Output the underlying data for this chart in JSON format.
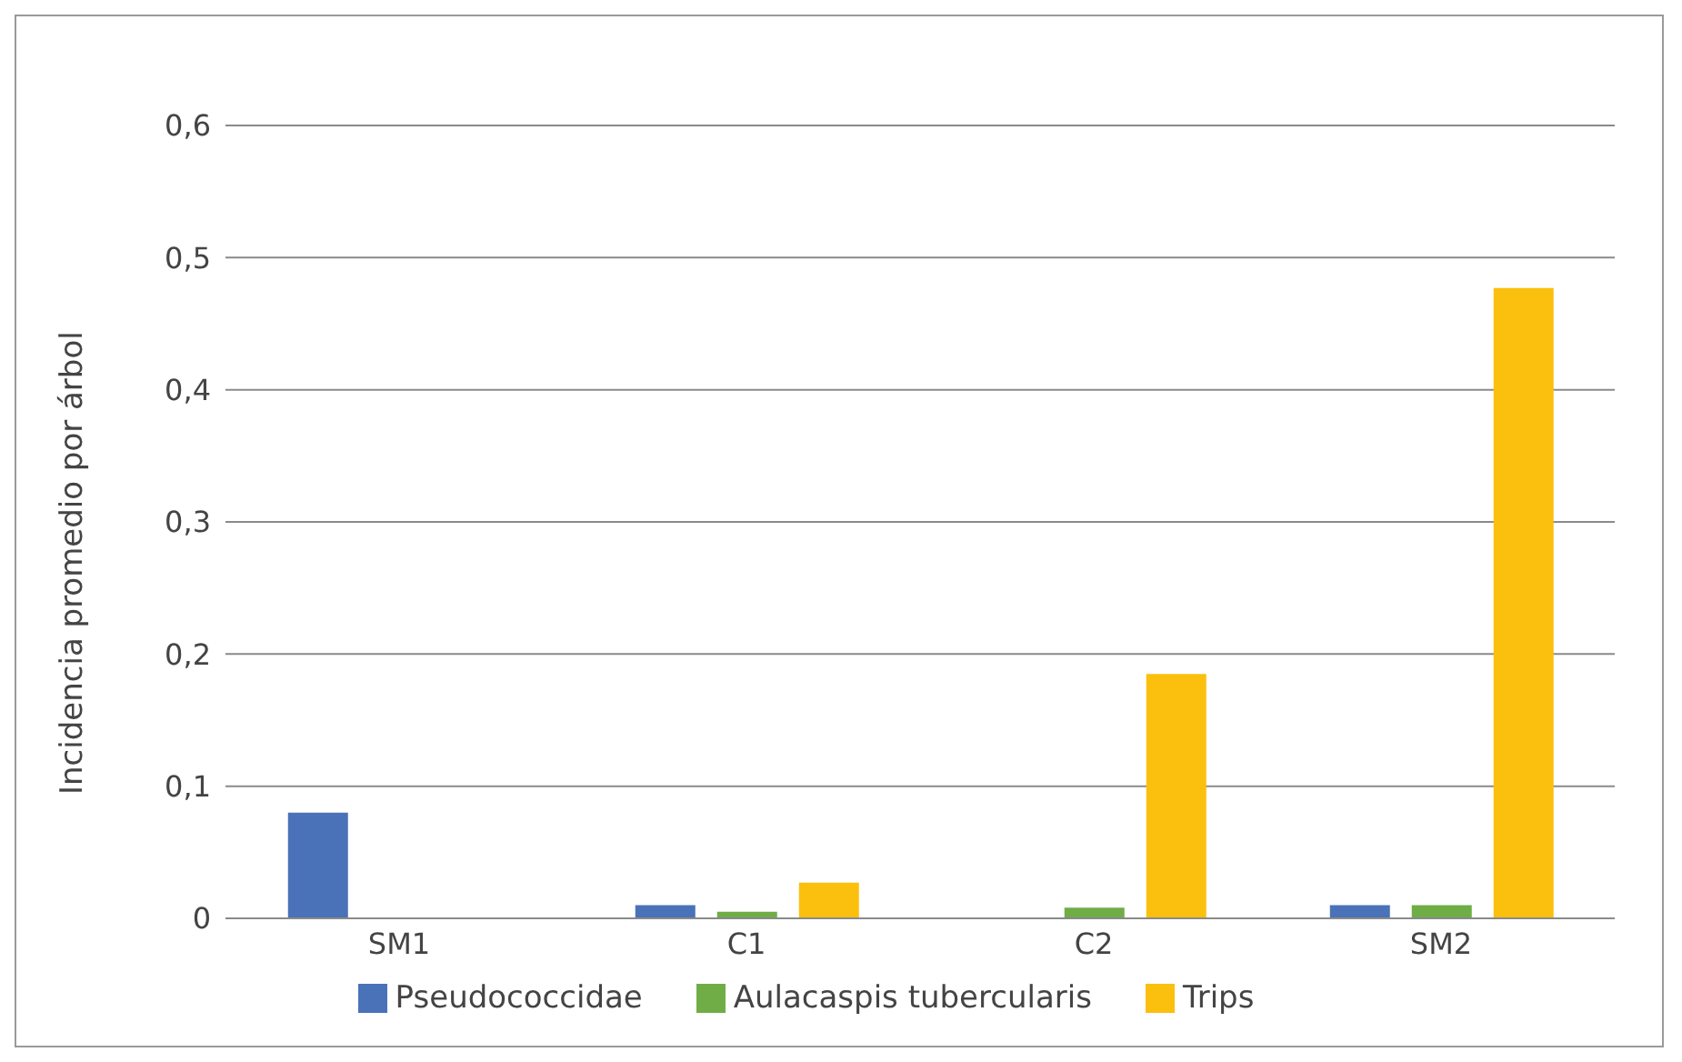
{
  "chart_data": {
    "type": "bar",
    "ylabel": "Incidencia promedio por árbol",
    "categories": [
      "SM1",
      "C1",
      "C2",
      "SM2"
    ],
    "series": [
      {
        "name": "Pseudococcidae",
        "color": "#4a72b8",
        "values": [
          0.08,
          0.01,
          null,
          0.01
        ]
      },
      {
        "name": "Aulacaspis tubercularis",
        "color": "#70ad47",
        "values": [
          null,
          0.005,
          0.008,
          0.01
        ]
      },
      {
        "name": "Trips",
        "color": "#fbbf0e",
        "values": [
          null,
          0.027,
          0.185,
          0.477
        ]
      }
    ],
    "ylim": [
      0,
      0.6
    ],
    "yticks": [
      0,
      {
        "value": 0.1,
        "label": "0,1"
      },
      {
        "value": 0.2,
        "label": "0,2"
      },
      {
        "value": 0.3,
        "label": "0,3"
      },
      {
        "value": 0.4,
        "label": "0,4"
      },
      {
        "value": 0.5,
        "label": "0,5"
      },
      {
        "value": 0.6,
        "label": "0,6"
      }
    ],
    "grid": "y",
    "legend": "bottom"
  }
}
